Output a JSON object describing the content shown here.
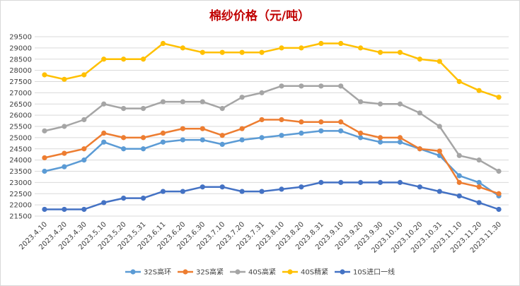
{
  "chart_data": {
    "type": "line",
    "title": "棉纱价格（元/吨）",
    "title_color": "#C00000",
    "categories": [
      "2023.4.10",
      "2023.4.20",
      "2023.4.30",
      "2023.5.10",
      "2023.5.20",
      "2023.5.31",
      "2023.6.11",
      "2023.6.20",
      "2023.6.30",
      "2023.7.10",
      "2023.7.20",
      "2023.7.31",
      "2023.8.10",
      "2023.8.20",
      "2023.8.31",
      "2023.9.10",
      "2023.9.20",
      "2023.9.30",
      "2023.10.10",
      "2023.10.20",
      "2023.10.31",
      "2023.11.10",
      "2023.11.20",
      "2023.11.30"
    ],
    "ylim": [
      21500,
      29500
    ],
    "yticks": [
      21500,
      22000,
      22500,
      23000,
      23500,
      24000,
      24500,
      25000,
      25500,
      26000,
      26500,
      27000,
      27500,
      28000,
      28500,
      29000,
      29500
    ],
    "grid": true,
    "legend_position": "bottom",
    "series": [
      {
        "name": "32S高环",
        "color": "#5B9BD5",
        "values": [
          23500,
          23700,
          24000,
          24800,
          24500,
          24500,
          24800,
          24900,
          24900,
          24700,
          24900,
          25000,
          25100,
          25200,
          25300,
          25300,
          25000,
          24800,
          24800,
          24500,
          24200,
          23300,
          23000,
          22400
        ]
      },
      {
        "name": "32S高紧",
        "color": "#ED7D31",
        "values": [
          24100,
          24300,
          24500,
          25200,
          25000,
          25000,
          25200,
          25400,
          25400,
          25100,
          25400,
          25800,
          25800,
          25700,
          25700,
          25700,
          25200,
          25000,
          25000,
          24500,
          24400,
          23000,
          22800,
          22500
        ]
      },
      {
        "name": "40S高紧",
        "color": "#A5A5A5",
        "values": [
          25300,
          25500,
          25800,
          26500,
          26300,
          26300,
          26600,
          26600,
          26600,
          26300,
          26800,
          27000,
          27300,
          27300,
          27300,
          27300,
          26600,
          26500,
          26500,
          26100,
          25500,
          24200,
          24000,
          23500
        ]
      },
      {
        "name": "40S精紧",
        "color": "#FFC000",
        "values": [
          27800,
          27600,
          27800,
          28500,
          28500,
          28500,
          29200,
          29000,
          28800,
          28800,
          28800,
          28800,
          29000,
          29000,
          29200,
          29200,
          29000,
          28800,
          28800,
          28500,
          28400,
          27500,
          27100,
          26800
        ]
      },
      {
        "name": "10S进口一线",
        "color": "#4472C4",
        "values": [
          21800,
          21800,
          21800,
          22100,
          22300,
          22300,
          22600,
          22600,
          22800,
          22800,
          22600,
          22600,
          22700,
          22800,
          23000,
          23000,
          23000,
          23000,
          23000,
          22800,
          22600,
          22400,
          22100,
          21800
        ]
      }
    ]
  }
}
